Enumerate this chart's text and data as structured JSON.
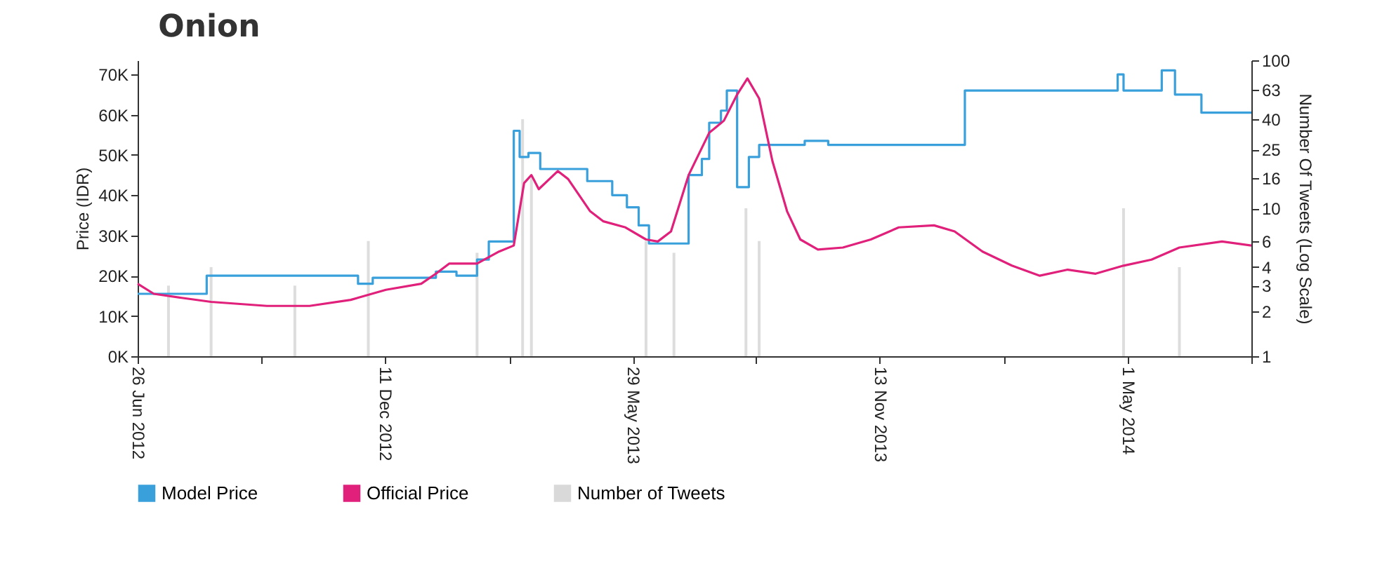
{
  "chart_data": {
    "type": "line",
    "title": "Onion",
    "ylabel": "Price (IDR)",
    "y2label": "Number Of Tweets (Log Scale)",
    "xlim": [
      "2012-06-26",
      "2014-07-24"
    ],
    "xticks": [
      {
        "value": "2012-06-26",
        "label": "26 Jun 2012"
      },
      {
        "value": "2012-09-18",
        "label": null
      },
      {
        "value": "2012-12-11",
        "label": "11 Dec 2012"
      },
      {
        "value": "2013-03-06",
        "label": null
      },
      {
        "value": "2013-05-29",
        "label": "29 May 2013"
      },
      {
        "value": "2013-08-21",
        "label": null
      },
      {
        "value": "2013-11-13",
        "label": "13 Nov 2013"
      },
      {
        "value": "2014-02-06",
        "label": null
      },
      {
        "value": "2014-05-01",
        "label": "1 May 2014"
      },
      {
        "value": "2014-07-24",
        "label": null
      }
    ],
    "ylim": [
      0,
      73500
    ],
    "yticks": [
      {
        "value": 0,
        "label": "0K"
      },
      {
        "value": 10000,
        "label": "10K"
      },
      {
        "value": 20000,
        "label": "20K"
      },
      {
        "value": 30000,
        "label": "30K"
      },
      {
        "value": 40000,
        "label": "40K"
      },
      {
        "value": 50000,
        "label": "50K"
      },
      {
        "value": 60000,
        "label": "60K"
      },
      {
        "value": 70000,
        "label": "70K"
      }
    ],
    "y2lim": [
      1,
      100
    ],
    "y2ticks": [
      1,
      2,
      3,
      4,
      6,
      10,
      16,
      25,
      40,
      63,
      100
    ],
    "log": "y2",
    "grid": false,
    "legend": "bottom",
    "series": [
      {
        "name": "Model Price",
        "type": "step",
        "color": "#3aa0dc",
        "x": [
          "2012-06-26",
          "2012-08-12",
          "2012-11-23",
          "2012-12-03",
          "2013-01-15",
          "2013-01-29",
          "2013-02-12",
          "2013-02-20",
          "2013-03-09",
          "2013-03-13",
          "2013-03-19",
          "2013-03-27",
          "2013-04-28",
          "2013-05-15",
          "2013-05-25",
          "2013-06-02",
          "2013-06-09",
          "2013-07-06",
          "2013-07-15",
          "2013-07-20",
          "2013-07-28",
          "2013-08-01",
          "2013-08-08",
          "2013-08-16",
          "2013-08-23",
          "2013-09-23",
          "2013-10-09",
          "2013-11-17",
          "2014-01-10",
          "2014-04-24",
          "2014-04-28",
          "2014-05-24",
          "2014-06-02",
          "2014-06-20",
          "2014-07-24"
        ],
        "values": [
          15500,
          20000,
          18000,
          19500,
          21000,
          20000,
          24000,
          28500,
          56000,
          49500,
          50500,
          46500,
          43500,
          40000,
          37000,
          32500,
          28000,
          45000,
          49000,
          58000,
          61000,
          66000,
          42000,
          49500,
          52500,
          53500,
          52500,
          52500,
          66000,
          70000,
          66000,
          71000,
          65000,
          60500,
          60500
        ]
      },
      {
        "name": "Official Price",
        "color": "#e0207a",
        "x": [
          "2012-06-26",
          "2012-07-07",
          "2012-07-26",
          "2012-08-15",
          "2012-09-22",
          "2012-10-21",
          "2012-11-18",
          "2012-12-12",
          "2013-01-05",
          "2013-01-15",
          "2013-01-24",
          "2013-02-12",
          "2013-02-27",
          "2013-03-09",
          "2013-03-16",
          "2013-03-21",
          "2013-03-26",
          "2013-04-08",
          "2013-04-15",
          "2013-04-30",
          "2013-05-09",
          "2013-05-24",
          "2013-06-07",
          "2013-06-15",
          "2013-06-24",
          "2013-07-06",
          "2013-07-20",
          "2013-07-30",
          "2013-08-08",
          "2013-08-15",
          "2013-08-23",
          "2013-09-01",
          "2013-09-11",
          "2013-09-20",
          "2013-10-02",
          "2013-10-19",
          "2013-11-07",
          "2013-11-26",
          "2013-12-20",
          "2014-01-03",
          "2014-01-22",
          "2014-02-11",
          "2014-03-02",
          "2014-03-21",
          "2014-04-09",
          "2014-04-28",
          "2014-05-17",
          "2014-06-05",
          "2014-07-04",
          "2014-07-24"
        ],
        "values": [
          18000,
          15500,
          14500,
          13500,
          12500,
          12500,
          14000,
          16500,
          18000,
          20500,
          23000,
          23000,
          26000,
          27500,
          43000,
          45000,
          41500,
          46000,
          44000,
          36000,
          33500,
          32000,
          29000,
          28500,
          31000,
          45000,
          55500,
          58500,
          65000,
          69000,
          64000,
          48500,
          36000,
          29000,
          26500,
          27000,
          29000,
          32000,
          32500,
          31000,
          26000,
          22500,
          20000,
          21500,
          20500,
          22500,
          24000,
          27000,
          28500,
          27500
        ]
      },
      {
        "name": "Number of Tweets",
        "type": "bar",
        "axis": "y2",
        "color": "#d9d9d9",
        "x": [
          "2012-07-17",
          "2012-08-15",
          "2012-10-11",
          "2012-11-30",
          "2013-02-12",
          "2013-03-15",
          "2013-03-21",
          "2013-06-07",
          "2013-06-26",
          "2013-08-14",
          "2013-08-23",
          "2014-04-28",
          "2014-06-05"
        ],
        "values": [
          3,
          4,
          3,
          6,
          5,
          40,
          16,
          6,
          5,
          10,
          6,
          10,
          4
        ]
      }
    ]
  }
}
